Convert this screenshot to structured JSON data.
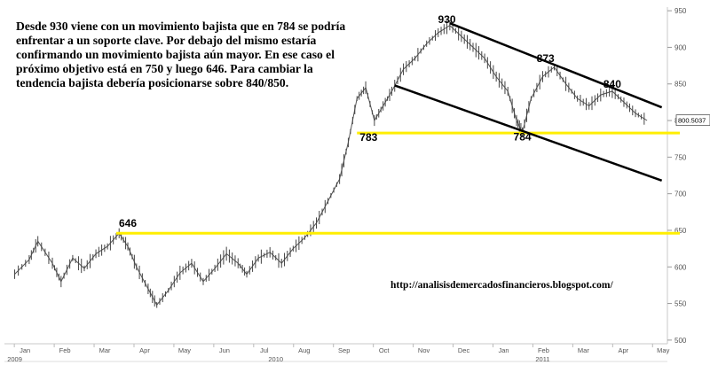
{
  "annotation_text": "Desde 930 viene con un movimiento bajista que en 784 se podría enfrentar a un soporte clave. Por debajo del mismo estaría confirmando un movimiento bajista aún mayor. En ese caso el próximo objetivo está en 750 y luego 646. Para cambiar la tendencia bajista debería posicionarse sobre 840/850.",
  "url_text": "http://analisisdemercadosfinancieros.blogspot.com/",
  "chart_data": {
    "type": "line",
    "y_ticks": [
      500,
      550,
      600,
      650,
      700,
      750,
      800,
      850,
      900,
      950
    ],
    "ylim": [
      495,
      955
    ],
    "x_months": [
      "Jan",
      "Feb",
      "Mar",
      "Apr",
      "May",
      "Jun",
      "Jul",
      "Aug",
      "Sep",
      "Oct",
      "Nov",
      "Dec",
      "Jan",
      "Feb",
      "Mar",
      "Apr",
      "May"
    ],
    "year_labels": [
      "2009",
      "2010",
      "2011"
    ],
    "last_price_label": "800.5037",
    "series": [
      {
        "values": [
          [
            0.0,
            590
          ],
          [
            0.5,
            610
          ],
          [
            0.8,
            635
          ],
          [
            1.3,
            605
          ],
          [
            1.6,
            580
          ],
          [
            2.0,
            612
          ],
          [
            2.4,
            598
          ],
          [
            2.8,
            618
          ],
          [
            3.2,
            628
          ],
          [
            3.6,
            646
          ],
          [
            3.9,
            628
          ],
          [
            4.2,
            600
          ],
          [
            4.6,
            570
          ],
          [
            4.9,
            548
          ],
          [
            5.3,
            568
          ],
          [
            5.7,
            592
          ],
          [
            6.1,
            605
          ],
          [
            6.5,
            580
          ],
          [
            6.9,
            598
          ],
          [
            7.3,
            618
          ],
          [
            7.7,
            605
          ],
          [
            8.0,
            590
          ],
          [
            8.4,
            612
          ],
          [
            8.8,
            620
          ],
          [
            9.2,
            605
          ],
          [
            9.6,
            625
          ],
          [
            10.0,
            640
          ],
          [
            10.4,
            660
          ],
          [
            10.8,
            690
          ],
          [
            11.2,
            720
          ],
          [
            11.5,
            770
          ],
          [
            11.8,
            830
          ],
          [
            12.1,
            845
          ],
          [
            12.4,
            800
          ],
          [
            12.7,
            820
          ],
          [
            13.0,
            840
          ],
          [
            13.4,
            870
          ],
          [
            13.8,
            885
          ],
          [
            14.2,
            905
          ],
          [
            14.6,
            920
          ],
          [
            15.0,
            930
          ],
          [
            15.4,
            915
          ],
          [
            15.8,
            900
          ],
          [
            16.2,
            885
          ],
          [
            16.6,
            860
          ],
          [
            17.0,
            840
          ],
          [
            17.3,
            800
          ],
          [
            17.5,
            784
          ],
          [
            17.8,
            830
          ],
          [
            18.2,
            860
          ],
          [
            18.6,
            873
          ],
          [
            19.0,
            850
          ],
          [
            19.4,
            830
          ],
          [
            19.8,
            820
          ],
          [
            20.2,
            835
          ],
          [
            20.6,
            840
          ],
          [
            21.0,
            825
          ],
          [
            21.4,
            810
          ],
          [
            21.8,
            800
          ]
        ]
      }
    ],
    "hlines": [
      {
        "y": 783,
        "label": "783",
        "color": "#ffee00"
      },
      {
        "y": 646,
        "label": "646",
        "color": "#ffee00"
      }
    ],
    "trendlines": [
      {
        "from": [
          15.0,
          933
        ],
        "to": [
          22.0,
          818
        ],
        "color": "#000000"
      },
      {
        "from": [
          13.1,
          848
        ],
        "to": [
          22.0,
          718
        ],
        "color": "#000000"
      }
    ],
    "point_labels": [
      {
        "text": "930",
        "x": 14.9,
        "y": 933
      },
      {
        "text": "873",
        "x": 18.3,
        "y": 880
      },
      {
        "text": "840",
        "x": 20.6,
        "y": 845
      },
      {
        "text": "783",
        "x": 12.2,
        "y": 772
      },
      {
        "text": "784",
        "x": 17.5,
        "y": 773
      },
      {
        "text": "646",
        "x": 3.9,
        "y": 655
      }
    ]
  }
}
